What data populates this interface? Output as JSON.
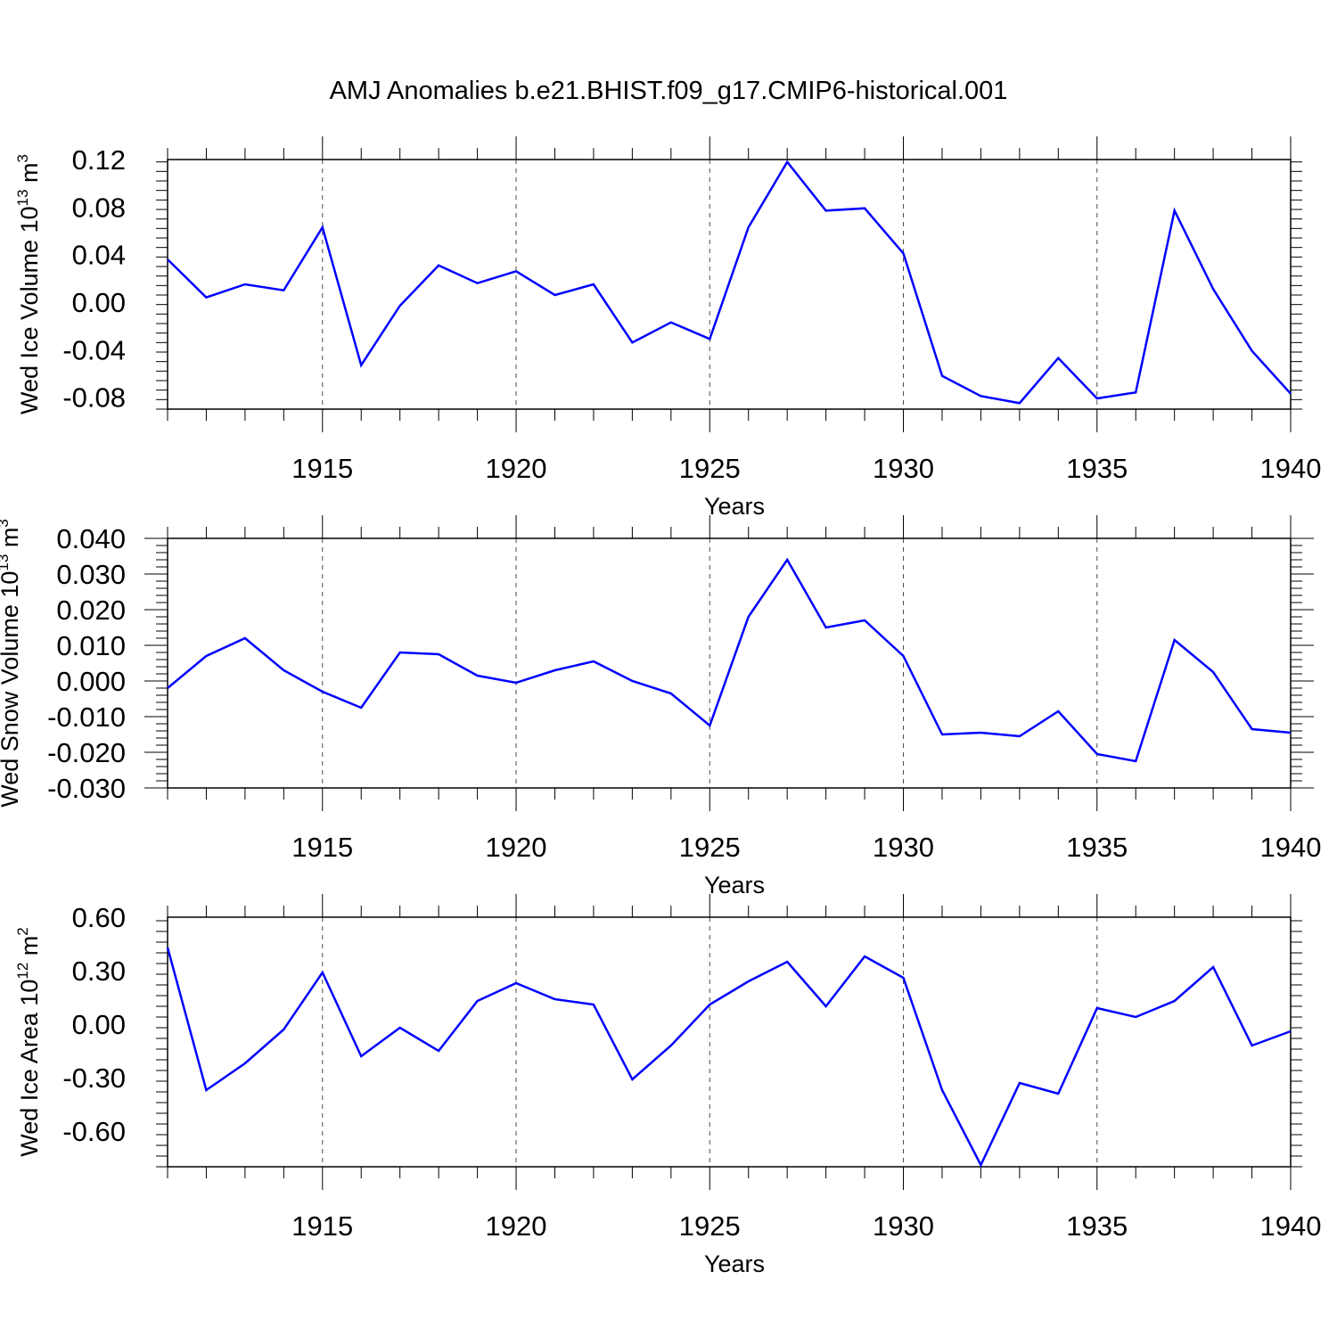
{
  "title": "AMJ Anomalies b.e21.BHIST.f09_g17.CMIP6-historical.001",
  "colors": {
    "line": "#0000ff",
    "axis": "#000000",
    "grid": "#000000"
  },
  "chart_data": [
    {
      "type": "line",
      "xlabel": "Years",
      "ylabel_main": "Wed Ice Volume 10",
      "ylabel_exp": "13",
      "ylabel_unit": " m",
      "ylabel_unit_exp": "3",
      "xlim": [
        1911,
        1940
      ],
      "ylim": [
        -0.09,
        0.12
      ],
      "x_ticks": [
        1915,
        1920,
        1925,
        1930,
        1935,
        1940
      ],
      "x_tick_labels": [
        "1915",
        "1920",
        "1925",
        "1930",
        "1935",
        "1940"
      ],
      "y_ticks": [
        0.12,
        0.08,
        0.04,
        0.0,
        -0.04,
        -0.08
      ],
      "y_tick_labels": [
        "0.12",
        "0.08",
        "0.04",
        "0.00",
        "-0.04",
        "-0.08"
      ],
      "grid": "vertical dashed at major x ticks",
      "x": [
        1911,
        1912,
        1913,
        1914,
        1915,
        1916,
        1917,
        1918,
        1919,
        1920,
        1921,
        1922,
        1923,
        1924,
        1925,
        1926,
        1927,
        1928,
        1929,
        1930,
        1931,
        1932,
        1933,
        1934,
        1935,
        1936,
        1937,
        1938,
        1939,
        1940
      ],
      "series": [
        {
          "values": [
            0.036,
            0.004,
            0.015,
            0.01,
            0.063,
            -0.053,
            -0.003,
            0.031,
            0.016,
            0.026,
            0.006,
            0.015,
            -0.034,
            -0.017,
            -0.031,
            0.063,
            0.118,
            0.077,
            0.079,
            0.041,
            -0.062,
            -0.079,
            -0.085,
            -0.047,
            -0.081,
            -0.076,
            0.077,
            0.011,
            -0.041,
            -0.077
          ]
        }
      ]
    },
    {
      "type": "line",
      "xlabel": "Years",
      "ylabel_main": "Wed Snow Volume 10",
      "ylabel_exp": "13",
      "ylabel_unit": " m",
      "ylabel_unit_exp": "3",
      "xlim": [
        1911,
        1940
      ],
      "ylim": [
        -0.03,
        0.04
      ],
      "x_ticks": [
        1915,
        1920,
        1925,
        1930,
        1935,
        1940
      ],
      "x_tick_labels": [
        "1915",
        "1920",
        "1925",
        "1930",
        "1935",
        "1940"
      ],
      "y_ticks": [
        0.04,
        0.03,
        0.02,
        0.01,
        0.0,
        -0.01,
        -0.02,
        -0.03
      ],
      "y_tick_labels": [
        "0.040",
        "0.030",
        "0.020",
        "0.010",
        "0.000",
        "-0.010",
        "-0.020",
        "-0.030"
      ],
      "grid": "vertical dashed at major x ticks",
      "x": [
        1911,
        1912,
        1913,
        1914,
        1915,
        1916,
        1917,
        1918,
        1919,
        1920,
        1921,
        1922,
        1923,
        1924,
        1925,
        1926,
        1927,
        1928,
        1929,
        1930,
        1931,
        1932,
        1933,
        1934,
        1935,
        1936,
        1937,
        1938,
        1939,
        1940
      ],
      "series": [
        {
          "values": [
            -0.002,
            0.007,
            0.012,
            0.003,
            -0.003,
            -0.0075,
            0.008,
            0.0075,
            0.0015,
            -0.0005,
            0.003,
            0.0055,
            0.0,
            -0.0035,
            -0.0125,
            0.018,
            0.034,
            0.015,
            0.017,
            0.007,
            -0.015,
            -0.0145,
            -0.0155,
            -0.0085,
            -0.0205,
            -0.0225,
            0.0115,
            0.0025,
            -0.0135,
            -0.0145
          ]
        }
      ]
    },
    {
      "type": "line",
      "xlabel": "Years",
      "ylabel_main": "Wed Ice Area 10",
      "ylabel_exp": "12",
      "ylabel_unit": " m",
      "ylabel_unit_exp": "2",
      "xlim": [
        1911,
        1940
      ],
      "ylim": [
        -0.8,
        0.6
      ],
      "x_ticks": [
        1915,
        1920,
        1925,
        1930,
        1935,
        1940
      ],
      "x_tick_labels": [
        "1915",
        "1920",
        "1925",
        "1930",
        "1935",
        "1940"
      ],
      "y_ticks": [
        0.6,
        0.3,
        0.0,
        -0.3,
        -0.6
      ],
      "y_tick_labels": [
        "0.60",
        "0.30",
        "0.00",
        "-0.30",
        "-0.60"
      ],
      "grid": "vertical dashed at major x ticks",
      "x": [
        1911,
        1912,
        1913,
        1914,
        1915,
        1916,
        1917,
        1918,
        1919,
        1920,
        1921,
        1922,
        1923,
        1924,
        1925,
        1926,
        1927,
        1928,
        1929,
        1930,
        1931,
        1932,
        1933,
        1934,
        1935,
        1936,
        1937,
        1938,
        1939,
        1940
      ],
      "series": [
        {
          "values": [
            0.43,
            -0.37,
            -0.22,
            -0.03,
            0.29,
            -0.18,
            -0.02,
            -0.15,
            0.13,
            0.23,
            0.14,
            0.11,
            -0.31,
            -0.12,
            0.11,
            0.24,
            0.35,
            0.1,
            0.38,
            0.26,
            -0.37,
            -0.79,
            -0.33,
            -0.39,
            0.09,
            0.04,
            0.13,
            0.32,
            -0.12,
            -0.04
          ]
        }
      ]
    }
  ]
}
